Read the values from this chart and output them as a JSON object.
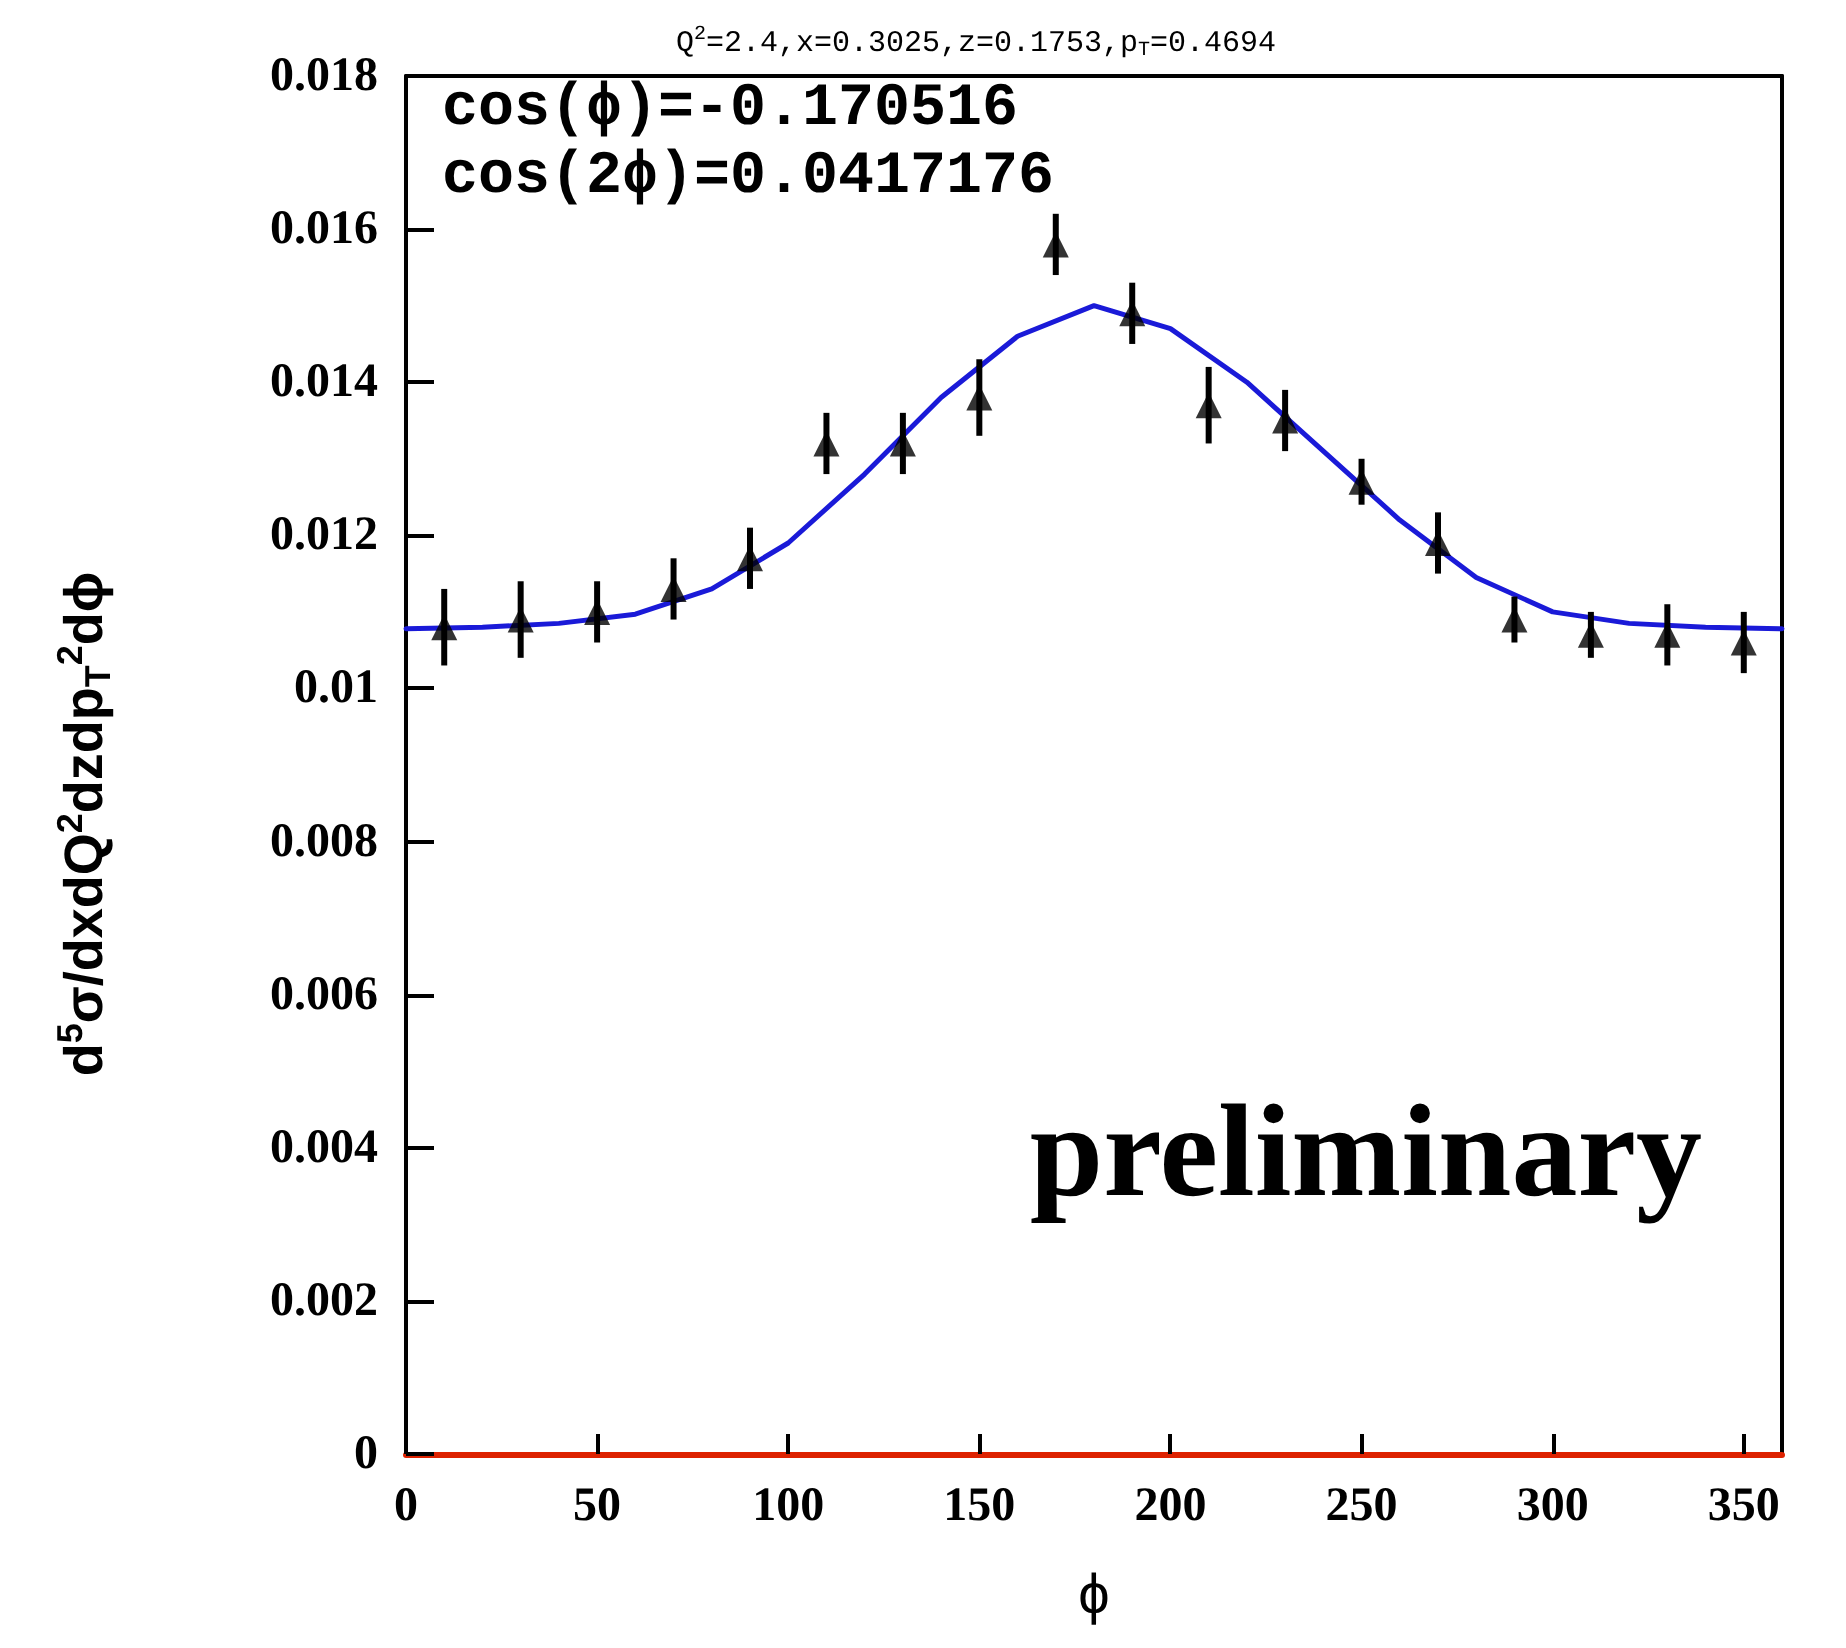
{
  "chart_data": {
    "type": "scatter",
    "title": "Q$^{2}$=2.4,x=0.3025,z=0.1753,p$_{T}$=0.4694",
    "xlabel": "ϕ",
    "ylabel": "d$^{5}$σ/dxdQ$^{2}$dzdp$_{T}$$^{2}$dϕ",
    "annotations": [
      "cos(ϕ)=-0.170516",
      "cos(2ϕ)=0.0417176",
      "preliminary"
    ],
    "x": [
      10,
      30,
      50,
      70,
      90,
      110,
      130,
      150,
      170,
      190,
      210,
      230,
      250,
      270,
      290,
      310,
      330,
      350
    ],
    "series": [
      {
        "color": "#000000",
        "marker": "triangle",
        "values": [
          0.0108,
          0.0109,
          0.011,
          0.0113,
          0.0117,
          0.0132,
          0.0132,
          0.0138,
          0.0158,
          0.0149,
          0.0137,
          0.0135,
          0.0127,
          0.0119,
          0.0109,
          0.0107,
          0.0107,
          0.0106
        ],
        "errors": [
          0.0005,
          0.0005,
          0.0004,
          0.0004,
          0.0004,
          0.0004,
          0.0004,
          0.0005,
          0.0004,
          0.0004,
          0.0005,
          0.0004,
          0.0003,
          0.0004,
          0.0003,
          0.0003,
          0.0004,
          0.0004
        ]
      },
      {
        "type": "line",
        "color": "#1a1ad8",
        "marker": "none",
        "line_style": "solid",
        "x": [
          0,
          20,
          40,
          60,
          80,
          100,
          120,
          140,
          160,
          180,
          200,
          220,
          240,
          260,
          280,
          300,
          320,
          340,
          360
        ],
        "values": [
          0.01078,
          0.0108,
          0.01085,
          0.01097,
          0.0113,
          0.0119,
          0.0128,
          0.0138,
          0.0146,
          0.015,
          0.0147,
          0.014,
          0.0131,
          0.0122,
          0.01145,
          0.011,
          0.01085,
          0.0108,
          0.01078
        ]
      }
    ],
    "xlim": [
      0,
      360
    ],
    "xticks": [
      0,
      50,
      100,
      150,
      200,
      250,
      300,
      350
    ],
    "ylim": [
      0,
      0.018
    ],
    "yticks": [
      0,
      0.002,
      0.004,
      0.006,
      0.008,
      0.01,
      0.012,
      0.014,
      0.016,
      0.018
    ],
    "grid": false
  }
}
